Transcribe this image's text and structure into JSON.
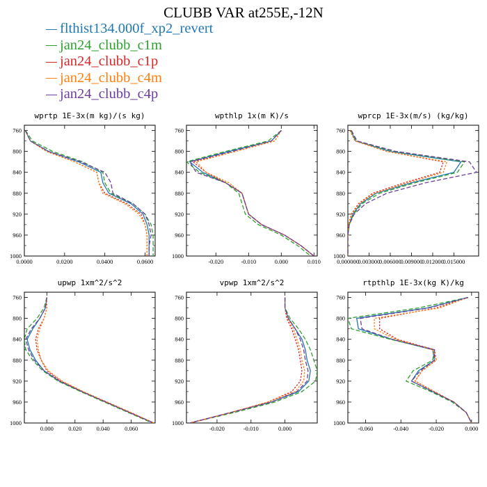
{
  "title": "CLUBB VAR at255E,-12N",
  "legend": [
    {
      "label": "flthist134.000f_xp2_revert",
      "color": "#1f77b4",
      "dash": "solid"
    },
    {
      "label": "jan24_clubb_c1m",
      "color": "#2ca02c",
      "dash": "longdash"
    },
    {
      "label": "jan24_clubb_c1p",
      "color": "#d62728",
      "dash": "dot"
    },
    {
      "label": "jan24_clubb_c4m",
      "color": "#ff7f0e",
      "dash": "dot"
    },
    {
      "label": "jan24_clubb_c4p",
      "color": "#6a3d9a",
      "dash": "longdash"
    }
  ],
  "chart_data": [
    {
      "type": "line",
      "title": "wprtp  1E-3x(m kg)/(s kg)",
      "xlim": [
        0,
        0.065
      ],
      "ylim": [
        1000,
        750
      ],
      "yticks": [
        760,
        800,
        840,
        880,
        920,
        960,
        1000
      ],
      "xticks": [
        0,
        0.02,
        0.04,
        0.06
      ],
      "xtick_labels": [
        "0.0000",
        "0.0200",
        "0.0400",
        "0.0600"
      ],
      "levels": [
        760,
        780,
        800,
        820,
        840,
        860,
        880,
        900,
        920,
        940,
        960,
        980,
        1000
      ],
      "series": [
        {
          "name": "flthist134.000f_xp2_revert",
          "values": [
            0.0005,
            0.003,
            0.012,
            0.027,
            0.038,
            0.039,
            0.042,
            0.053,
            0.059,
            0.061,
            0.062,
            0.062,
            0.062
          ]
        },
        {
          "name": "jan24_clubb_c1m",
          "values": [
            0.0006,
            0.004,
            0.014,
            0.029,
            0.039,
            0.04,
            0.043,
            0.054,
            0.06,
            0.063,
            0.064,
            0.064,
            0.064
          ]
        },
        {
          "name": "jan24_clubb_c1p",
          "values": [
            0.0004,
            0.003,
            0.011,
            0.025,
            0.036,
            0.037,
            0.04,
            0.051,
            0.058,
            0.06,
            0.061,
            0.061,
            0.061
          ]
        },
        {
          "name": "jan24_clubb_c4m",
          "values": [
            0.0004,
            0.003,
            0.011,
            0.025,
            0.036,
            0.037,
            0.039,
            0.05,
            0.057,
            0.06,
            0.061,
            0.061,
            0.061
          ]
        },
        {
          "name": "jan24_clubb_c4p",
          "values": [
            0.0005,
            0.003,
            0.012,
            0.028,
            0.04,
            0.043,
            0.044,
            0.054,
            0.06,
            0.062,
            0.063,
            0.062,
            0.062
          ]
        }
      ]
    },
    {
      "type": "line",
      "title": "wpthlp  1x(m K)/s",
      "xlim": [
        -0.029,
        0.011
      ],
      "ylim": [
        1000,
        750
      ],
      "yticks": [
        760,
        800,
        840,
        880,
        920,
        960,
        1000
      ],
      "xticks": [
        -0.02,
        -0.01,
        0,
        0.01
      ],
      "xtick_labels": [
        "-0.020",
        "-0.010",
        "0.000",
        "0.010"
      ],
      "levels": [
        760,
        780,
        800,
        820,
        840,
        860,
        880,
        900,
        920,
        940,
        960,
        980,
        1000
      ],
      "series": [
        {
          "name": "flthist134.000f_xp2_revert",
          "values": [
            0.0,
            -0.003,
            -0.016,
            -0.028,
            -0.024,
            -0.017,
            -0.012,
            -0.011,
            -0.01,
            -0.006,
            0.001,
            0.006,
            0.01
          ]
        },
        {
          "name": "jan24_clubb_c1m",
          "values": [
            0.0,
            -0.004,
            -0.017,
            -0.029,
            -0.025,
            -0.017,
            -0.013,
            -0.012,
            -0.011,
            -0.007,
            0.0,
            0.005,
            0.009
          ]
        },
        {
          "name": "jan24_clubb_c1p",
          "values": [
            0.0,
            -0.002,
            -0.014,
            -0.027,
            -0.023,
            -0.017,
            -0.012,
            -0.011,
            -0.01,
            -0.006,
            0.001,
            0.006,
            0.01
          ]
        },
        {
          "name": "jan24_clubb_c4m",
          "values": [
            0.0,
            -0.002,
            -0.014,
            -0.026,
            -0.023,
            -0.016,
            -0.012,
            -0.011,
            -0.01,
            -0.006,
            0.001,
            0.006,
            0.01
          ]
        },
        {
          "name": "jan24_clubb_c4p",
          "values": [
            0.0,
            -0.003,
            -0.015,
            -0.028,
            -0.026,
            -0.017,
            -0.012,
            -0.011,
            -0.01,
            -0.006,
            0.001,
            0.006,
            0.01
          ]
        }
      ]
    },
    {
      "type": "line",
      "title": "wprcp  1E-3x(m/s) (kg/kg)",
      "xlim": [
        0,
        0.0185
      ],
      "ylim": [
        1000,
        750
      ],
      "yticks": [
        760,
        800,
        840,
        880,
        920,
        960,
        1000
      ],
      "xticks": [
        0,
        0.003,
        0.006,
        0.009,
        0.012,
        0.015
      ],
      "xtick_labels": [
        "0.000000",
        "0.003000",
        "0.006000",
        "0.009000",
        "0.012000",
        "0.015000"
      ],
      "levels": [
        760,
        780,
        800,
        820,
        840,
        860,
        880,
        900,
        920,
        940,
        960,
        980,
        1000
      ],
      "series": [
        {
          "name": "flthist134.000f_xp2_revert",
          "values": [
            0.0004,
            0.0011,
            0.006,
            0.016,
            0.015,
            0.009,
            0.004,
            0.0018,
            0.0007,
            0.0002,
            0.0,
            0.0,
            0.0
          ]
        },
        {
          "name": "jan24_clubb_c1m",
          "values": [
            0.0004,
            0.0012,
            0.0065,
            0.0165,
            0.0155,
            0.0095,
            0.0045,
            0.002,
            0.0008,
            0.0002,
            0.0,
            0.0,
            0.0
          ]
        },
        {
          "name": "jan24_clubb_c1p",
          "values": [
            0.0003,
            0.001,
            0.0055,
            0.0135,
            0.013,
            0.008,
            0.0035,
            0.0015,
            0.0005,
            0.0001,
            0.0,
            0.0,
            0.0
          ]
        },
        {
          "name": "jan24_clubb_c4m",
          "values": [
            0.0003,
            0.001,
            0.0055,
            0.014,
            0.0135,
            0.0085,
            0.0038,
            0.0016,
            0.0006,
            0.0001,
            0.0,
            0.0,
            0.0
          ]
        },
        {
          "name": "jan24_clubb_c4p",
          "values": [
            0.0005,
            0.0013,
            0.0068,
            0.0172,
            0.0182,
            0.011,
            0.0055,
            0.0025,
            0.0009,
            0.0002,
            0.0,
            0.0,
            0.0
          ]
        }
      ]
    },
    {
      "type": "line",
      "title": "upwp  1xm^2/s^2",
      "xlim": [
        -0.016,
        0.077
      ],
      "ylim": [
        1000,
        750
      ],
      "yticks": [
        760,
        800,
        840,
        880,
        920,
        960,
        1000
      ],
      "xticks": [
        0,
        0.02,
        0.04,
        0.06
      ],
      "xtick_labels": [
        "0.000",
        "0.020",
        "0.040",
        "0.060"
      ],
      "levels": [
        760,
        780,
        800,
        820,
        840,
        860,
        880,
        900,
        920,
        940,
        960,
        980,
        1000
      ],
      "series": [
        {
          "name": "flthist134.000f_xp2_revert",
          "values": [
            0.0,
            -0.001,
            -0.005,
            -0.01,
            -0.014,
            -0.012,
            -0.008,
            -0.002,
            0.009,
            0.025,
            0.042,
            0.059,
            0.076
          ]
        },
        {
          "name": "jan24_clubb_c1m",
          "values": [
            0.0,
            -0.002,
            -0.007,
            -0.014,
            -0.016,
            -0.015,
            -0.01,
            -0.003,
            0.008,
            0.024,
            0.041,
            0.058,
            0.075
          ]
        },
        {
          "name": "jan24_clubb_c1p",
          "values": [
            0.0,
            0.0,
            -0.002,
            -0.006,
            -0.008,
            -0.007,
            -0.004,
            0.0,
            0.01,
            0.025,
            0.042,
            0.059,
            0.076
          ]
        },
        {
          "name": "jan24_clubb_c4m",
          "values": [
            0.0,
            0.0,
            -0.002,
            -0.005,
            -0.007,
            -0.006,
            -0.004,
            0.001,
            0.011,
            0.026,
            0.043,
            0.06,
            0.076
          ]
        },
        {
          "name": "jan24_clubb_c4p",
          "values": [
            0.0,
            -0.001,
            -0.005,
            -0.011,
            -0.015,
            -0.013,
            -0.009,
            -0.002,
            0.009,
            0.025,
            0.042,
            0.059,
            0.076
          ]
        }
      ]
    },
    {
      "type": "line",
      "title": "vpwp  1xm^2/s^2",
      "xlim": [
        -0.029,
        0.0095
      ],
      "ylim": [
        1000,
        750
      ],
      "yticks": [
        760,
        800,
        840,
        880,
        920,
        960,
        1000
      ],
      "xticks": [
        -0.02,
        -0.01,
        0
      ],
      "xtick_labels": [
        "-0.020",
        "-0.010",
        "0.000"
      ],
      "levels": [
        760,
        780,
        800,
        820,
        840,
        860,
        880,
        900,
        920,
        940,
        960,
        980,
        1000
      ],
      "series": [
        {
          "name": "flthist134.000f_xp2_revert",
          "values": [
            0.0,
            0.0,
            0.001,
            0.003,
            0.005,
            0.006,
            0.0065,
            0.0075,
            0.007,
            0.004,
            -0.004,
            -0.016,
            -0.028
          ]
        },
        {
          "name": "jan24_clubb_c1m",
          "values": [
            0.0,
            0.0,
            0.0015,
            0.004,
            0.006,
            0.0075,
            0.0085,
            0.0095,
            0.009,
            0.005,
            -0.003,
            -0.015,
            -0.028
          ]
        },
        {
          "name": "jan24_clubb_c1p",
          "values": [
            0.0,
            0.0,
            0.0005,
            0.002,
            0.003,
            0.004,
            0.0045,
            0.005,
            0.0045,
            0.002,
            -0.005,
            -0.016,
            -0.028
          ]
        },
        {
          "name": "jan24_clubb_c4m",
          "values": [
            0.0,
            0.0,
            0.0008,
            0.0025,
            0.0035,
            0.0045,
            0.005,
            0.0058,
            0.0055,
            0.003,
            -0.005,
            -0.016,
            -0.028
          ]
        },
        {
          "name": "jan24_clubb_c4p",
          "values": [
            0.0,
            0.0,
            0.001,
            0.003,
            0.0045,
            0.0055,
            0.006,
            0.0068,
            0.0065,
            0.0035,
            -0.004,
            -0.016,
            -0.028
          ]
        }
      ]
    },
    {
      "type": "line",
      "title": "rtpthlp  1E-3x(kg K)/kg",
      "xlim": [
        -0.07,
        0.004
      ],
      "ylim": [
        1000,
        750
      ],
      "yticks": [
        760,
        800,
        840,
        880,
        920,
        960,
        1000
      ],
      "xticks": [
        -0.06,
        -0.04,
        -0.02,
        0
      ],
      "xtick_labels": [
        "-0.060",
        "-0.040",
        "-0.020",
        "0.000"
      ],
      "levels": [
        760,
        780,
        800,
        820,
        840,
        860,
        880,
        900,
        920,
        940,
        960,
        980,
        1000
      ],
      "series": [
        {
          "name": "flthist134.000f_xp2_revert",
          "values": [
            -0.002,
            -0.025,
            -0.065,
            -0.064,
            -0.045,
            -0.022,
            -0.021,
            -0.03,
            -0.034,
            -0.022,
            -0.01,
            -0.003,
            0.0
          ]
        },
        {
          "name": "jan24_clubb_c1m",
          "values": [
            -0.002,
            -0.03,
            -0.07,
            -0.068,
            -0.046,
            -0.021,
            -0.022,
            -0.033,
            -0.037,
            -0.023,
            -0.011,
            -0.003,
            0.0
          ]
        },
        {
          "name": "jan24_clubb_c1p",
          "values": [
            -0.002,
            -0.02,
            -0.052,
            -0.052,
            -0.042,
            -0.021,
            -0.02,
            -0.028,
            -0.032,
            -0.021,
            -0.01,
            -0.003,
            0.0
          ]
        },
        {
          "name": "jan24_clubb_c4m",
          "values": [
            -0.002,
            -0.018,
            -0.055,
            -0.055,
            -0.043,
            -0.022,
            -0.02,
            -0.028,
            -0.032,
            -0.021,
            -0.01,
            -0.003,
            0.0
          ]
        },
        {
          "name": "jan24_clubb_c4p",
          "values": [
            -0.002,
            -0.024,
            -0.063,
            -0.062,
            -0.045,
            -0.021,
            -0.021,
            -0.029,
            -0.034,
            -0.022,
            -0.01,
            -0.003,
            0.0
          ]
        }
      ]
    }
  ]
}
